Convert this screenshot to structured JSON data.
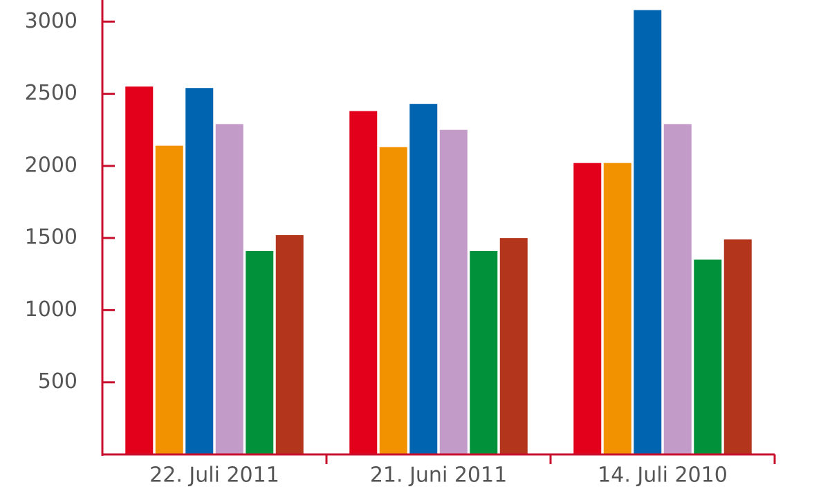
{
  "chart_data": {
    "type": "bar",
    "categories": [
      "22. Juli 2011",
      "21. Juni 2011",
      "14. Juli 2010"
    ],
    "series": [
      {
        "color": "#e3001b",
        "values": [
          2550,
          2380,
          2020
        ]
      },
      {
        "color": "#f39200",
        "values": [
          2140,
          2130,
          2020
        ]
      },
      {
        "color": "#0064b0",
        "values": [
          2540,
          2430,
          3080
        ]
      },
      {
        "color": "#c39bc8",
        "values": [
          2290,
          2250,
          2290
        ]
      },
      {
        "color": "#00913a",
        "values": [
          1410,
          1410,
          1350
        ]
      },
      {
        "color": "#b2351c",
        "values": [
          1520,
          1500,
          1490
        ]
      }
    ],
    "ylim": [
      0,
      3150
    ],
    "yticks": [
      500,
      1000,
      1500,
      2000,
      2500,
      3000
    ],
    "grid": false,
    "axis_color": "#c8102e"
  }
}
